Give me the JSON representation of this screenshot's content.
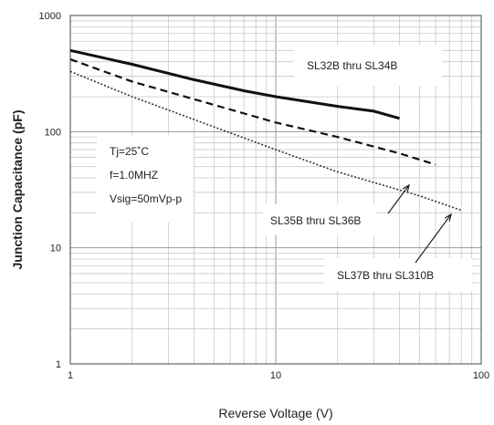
{
  "chart_data": {
    "type": "line",
    "xlabel": "Reverse Voltage (V)",
    "ylabel": "Junction Capacitance (pF)",
    "xscale": "log",
    "yscale": "log",
    "xlim": [
      1,
      100
    ],
    "ylim": [
      1,
      1000
    ],
    "grid": true,
    "x_ticks": [
      "1",
      "10",
      "100"
    ],
    "y_ticks": [
      "1",
      "10",
      "100",
      "1000"
    ],
    "conditions": [
      "Tj=25˚C",
      "f=1.0MHZ",
      "Vsig=50mVp-p"
    ],
    "series": [
      {
        "name": "SL32B thru SL34B",
        "style": "solid",
        "color": "#111111",
        "x": [
          1,
          2,
          4,
          7,
          10,
          20,
          30,
          40
        ],
        "y": [
          500,
          380,
          280,
          225,
          200,
          165,
          150,
          130
        ]
      },
      {
        "name": "SL35B thru SL36B",
        "style": "dashed",
        "color": "#111111",
        "x": [
          1,
          2,
          5,
          10,
          20,
          40,
          60
        ],
        "y": [
          420,
          270,
          170,
          120,
          90,
          65,
          52
        ]
      },
      {
        "name": "SL37B thru SL310B",
        "style": "dotted",
        "color": "#333333",
        "x": [
          1,
          2,
          5,
          10,
          20,
          50,
          80
        ],
        "y": [
          330,
          200,
          110,
          70,
          45,
          28,
          21
        ]
      }
    ]
  }
}
